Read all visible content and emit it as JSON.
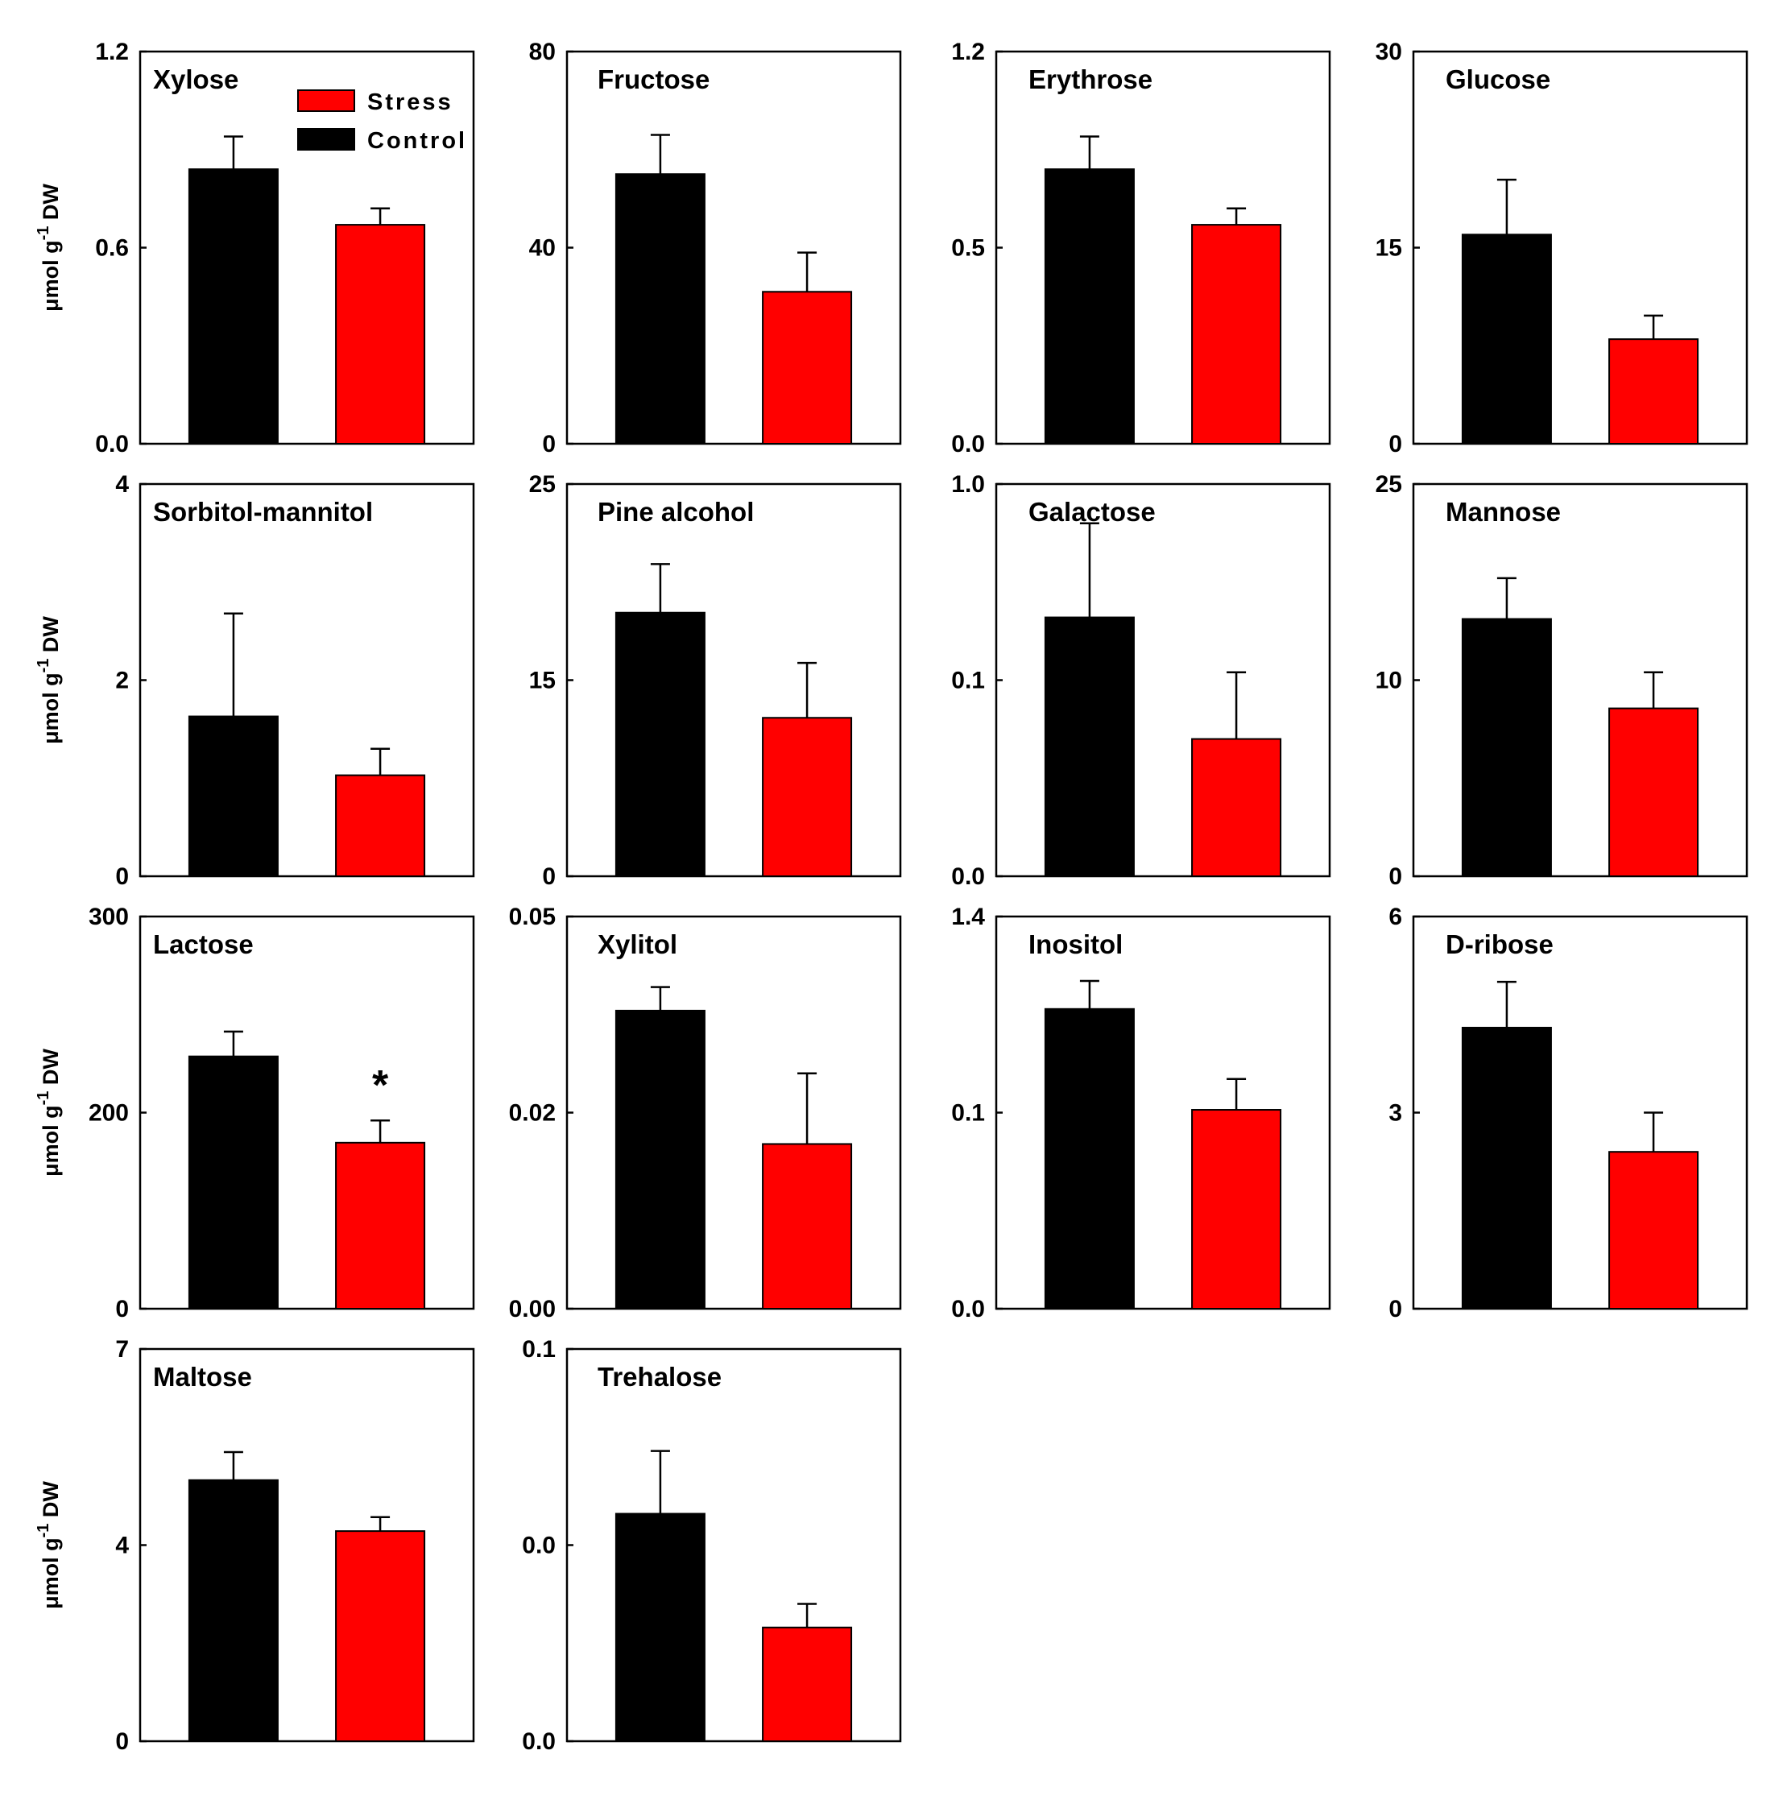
{
  "colors": {
    "stress": "#ff0000",
    "control": "#000000"
  },
  "legend": {
    "stress_label": "Stress",
    "control_label": "Control",
    "location": "top-right of first panel"
  },
  "ylabel_text": "μmol g-1 DW",
  "chart_data": [
    {
      "type": "bar",
      "title": "Xylose",
      "categories": [
        "Control",
        "Stress"
      ],
      "values": [
        0.84,
        0.67
      ],
      "errors": [
        0.1,
        0.05
      ],
      "yticks": [
        "0.0",
        "0.6",
        "1.2"
      ],
      "ylim": [
        0,
        1.2
      ],
      "ylabel": "μmol g-1 DW"
    },
    {
      "type": "bar",
      "title": "Fructose",
      "categories": [
        "Control",
        "Stress"
      ],
      "values": [
        55,
        31
      ],
      "errors": [
        8,
        8
      ],
      "yticks": [
        "0",
        "40",
        "80"
      ],
      "ylim": [
        0,
        80
      ],
      "ylabel": ""
    },
    {
      "type": "bar",
      "title": "Erythrose",
      "categories": [
        "Control",
        "Stress"
      ],
      "values": [
        0.84,
        0.67
      ],
      "errors": [
        0.1,
        0.05
      ],
      "yticks": [
        "0.0",
        "0.5",
        "1.2"
      ],
      "ylim": [
        0,
        1.2
      ],
      "ylabel": ""
    },
    {
      "type": "bar",
      "title": "Glucose",
      "categories": [
        "Control",
        "Stress"
      ],
      "values": [
        16,
        8
      ],
      "errors": [
        4.2,
        1.8
      ],
      "yticks": [
        "0",
        "15",
        "30"
      ],
      "ylim": [
        0,
        30
      ],
      "ylabel": ""
    },
    {
      "type": "bar",
      "title": "Sorbitol-mannitol",
      "categories": [
        "Control",
        "Stress"
      ],
      "values": [
        1.63,
        1.03
      ],
      "errors": [
        1.05,
        0.27
      ],
      "yticks": [
        "0",
        "2",
        "4"
      ],
      "ylim": [
        0,
        4
      ],
      "ylabel": "μmol g-1 DW"
    },
    {
      "type": "bar",
      "title": "Pine alcohol",
      "categories": [
        "Control",
        "Stress"
      ],
      "values": [
        16.8,
        10.1
      ],
      "errors": [
        3.1,
        3.5
      ],
      "yticks": [
        "0",
        "15",
        "25"
      ],
      "ylim": [
        0,
        25
      ],
      "ylabel": ""
    },
    {
      "type": "bar",
      "title": "Galactose",
      "categories": [
        "Control",
        "Stress"
      ],
      "values": [
        0.66,
        0.35
      ],
      "errors": [
        0.24,
        0.17
      ],
      "yticks": [
        "0.0",
        "0.1",
        "1.0"
      ],
      "ylim": [
        0,
        1.0
      ],
      "ylabel": ""
    },
    {
      "type": "bar",
      "title": "Mannose",
      "categories": [
        "Control",
        "Stress"
      ],
      "values": [
        16.4,
        10.7
      ],
      "errors": [
        2.6,
        2.3
      ],
      "yticks": [
        "0",
        "10",
        "25"
      ],
      "ylim": [
        0,
        25
      ],
      "ylabel": ""
    },
    {
      "type": "bar",
      "title": "Lactose",
      "categories": [
        "Control",
        "Stress"
      ],
      "values": [
        193,
        127
      ],
      "errors": [
        19,
        17
      ],
      "yticks": [
        "0",
        "200",
        "300"
      ],
      "ylim": [
        0,
        300
      ],
      "ylabel": "μmol g-1 DW",
      "annotations": [
        {
          "text": "*",
          "category": "Stress"
        }
      ]
    },
    {
      "type": "bar",
      "title": "Xylitol",
      "categories": [
        "Control",
        "Stress"
      ],
      "values": [
        0.038,
        0.021
      ],
      "errors": [
        0.003,
        0.009
      ],
      "yticks": [
        "0.00",
        "0.02",
        "0.05"
      ],
      "ylim": [
        0,
        0.05
      ],
      "ylabel": ""
    },
    {
      "type": "bar",
      "title": "Inositol",
      "categories": [
        "Control",
        "Stress"
      ],
      "values": [
        1.07,
        0.71
      ],
      "errors": [
        0.1,
        0.11
      ],
      "yticks": [
        "0.0",
        "0.1",
        "1.4"
      ],
      "ylim": [
        0,
        1.4
      ],
      "ylabel": ""
    },
    {
      "type": "bar",
      "title": "D-ribose",
      "categories": [
        "Control",
        "Stress"
      ],
      "values": [
        4.3,
        2.4
      ],
      "errors": [
        0.7,
        0.6
      ],
      "yticks": [
        "0",
        "3",
        "6"
      ],
      "ylim": [
        0,
        6
      ],
      "ylabel": ""
    },
    {
      "type": "bar",
      "title": "Maltose",
      "categories": [
        "Control",
        "Stress"
      ],
      "values": [
        4.66,
        3.75
      ],
      "errors": [
        0.5,
        0.25
      ],
      "yticks": [
        "0",
        "4",
        "7"
      ],
      "ylim": [
        0,
        7
      ],
      "ylabel": "μmol g-1 DW"
    },
    {
      "type": "bar",
      "title": "Trehalose",
      "categories": [
        "Control",
        "Stress"
      ],
      "values": [
        0.058,
        0.029
      ],
      "errors": [
        0.016,
        0.006
      ],
      "yticks": [
        "0.0",
        "0.0",
        "0.1"
      ],
      "ylim": [
        0,
        0.1
      ],
      "ylabel": ""
    }
  ]
}
